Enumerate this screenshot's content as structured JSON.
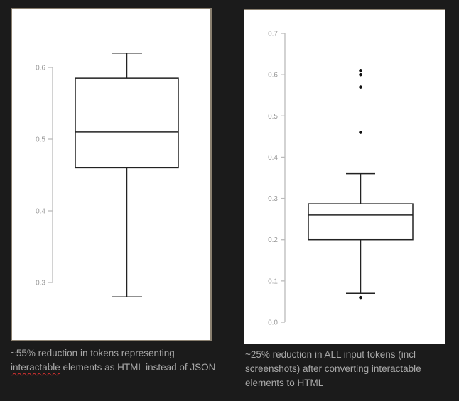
{
  "chart_data": [
    {
      "type": "boxplot",
      "ylim": [
        0.3,
        0.6
      ],
      "yticks": [
        "0.3",
        "0.4",
        "0.5",
        "0.6"
      ],
      "grid": false,
      "box": {
        "whisker_low": 0.28,
        "q1": 0.46,
        "median": 0.51,
        "q3": 0.585,
        "whisker_high": 0.62
      },
      "outliers": []
    },
    {
      "type": "boxplot",
      "ylim": [
        0.0,
        0.7
      ],
      "yticks": [
        "0.0",
        "0.1",
        "0.2",
        "0.3",
        "0.4",
        "0.5",
        "0.6",
        "0.7"
      ],
      "grid": false,
      "box": {
        "whisker_low": 0.07,
        "q1": 0.2,
        "median": 0.26,
        "q3": 0.287,
        "whisker_high": 0.36
      },
      "outliers": [
        0.61,
        0.6,
        0.57,
        0.46,
        0.06
      ]
    }
  ],
  "captions": {
    "left": {
      "pre": "~55% reduction in tokens representing ",
      "misspelled": "interactable",
      "post": " elements as HTML instead of JSON"
    },
    "right": "~25% reduction in ALL input tokens (incl screenshots) after converting interactable elements to HTML"
  },
  "colors": {
    "background": "#1b1b1b",
    "caption": "#a8a8a8",
    "axis": "#bbbbbb",
    "box": "#222222"
  }
}
